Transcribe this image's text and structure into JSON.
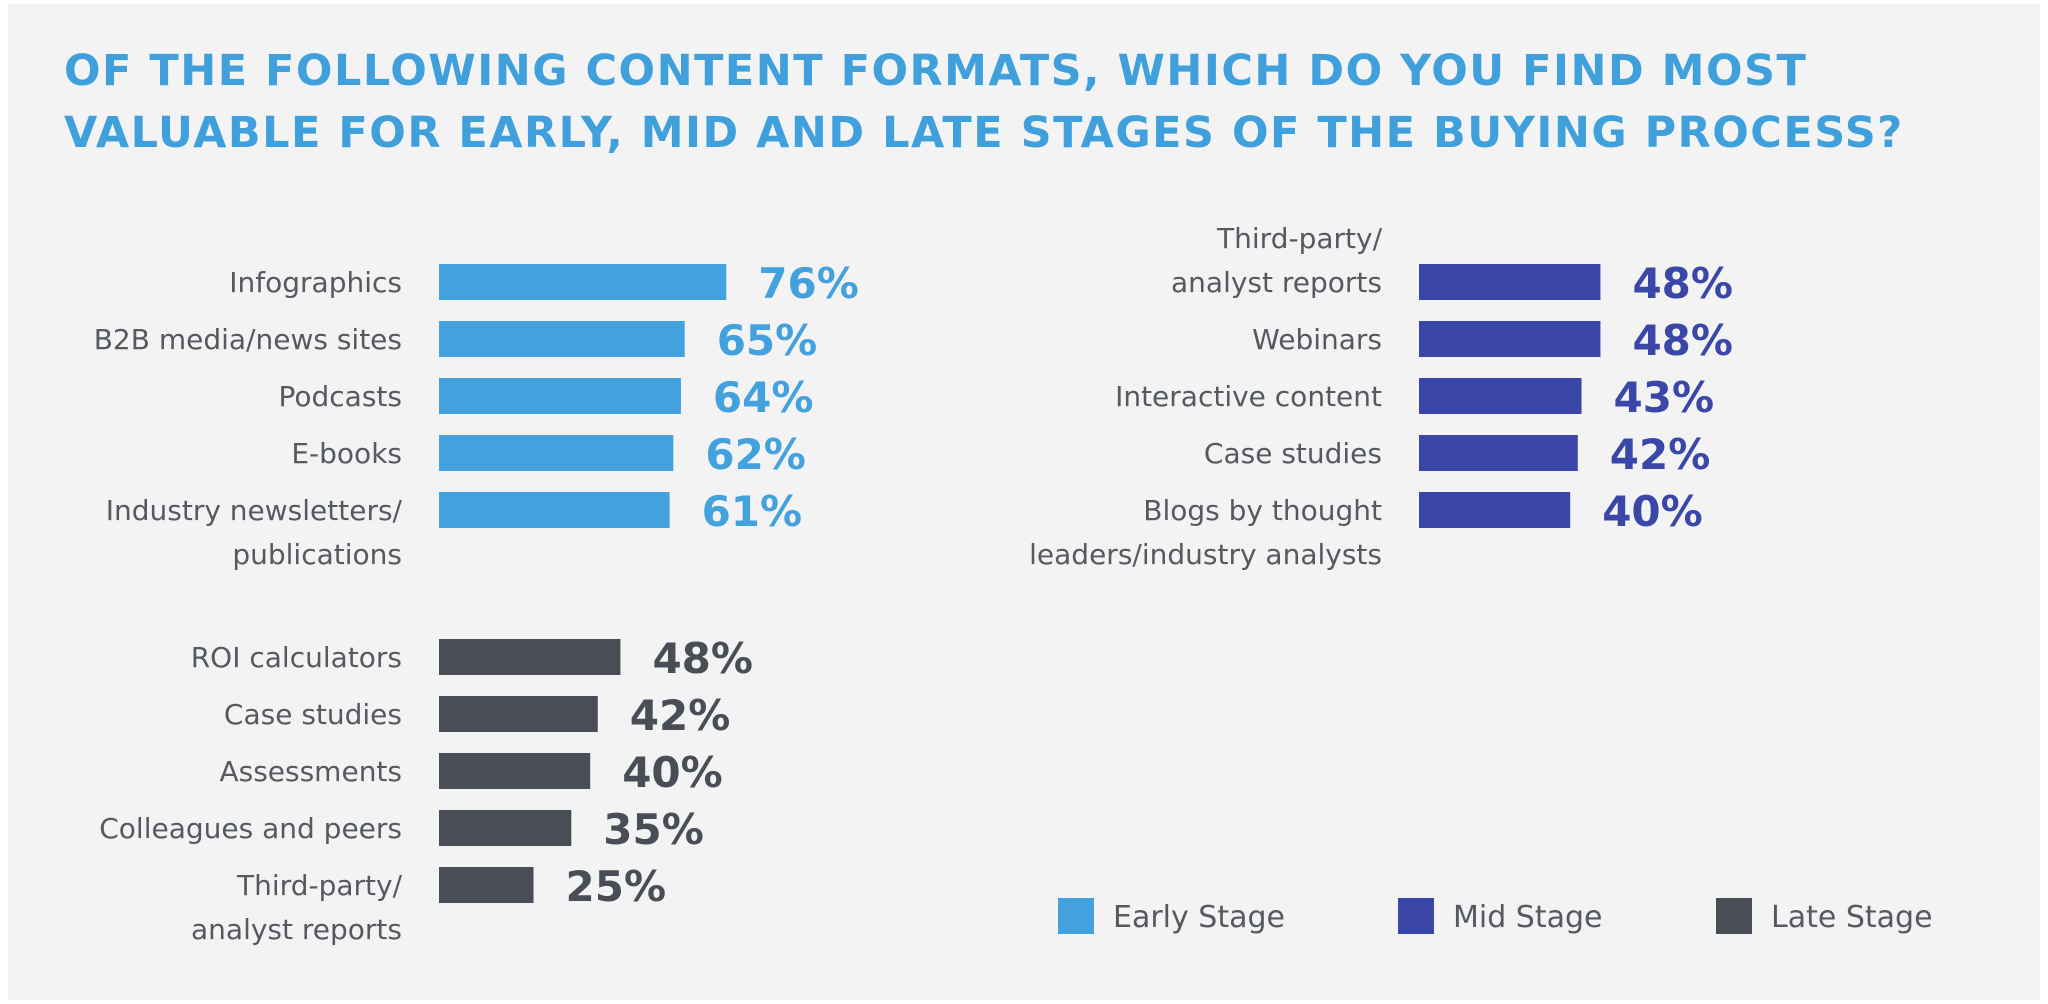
{
  "colors": {
    "title": "#3fa0dc",
    "early": "#43a1de",
    "mid": "#3b47a8",
    "late": "#494d55",
    "text": "#555a60",
    "background": "#f3f3f4"
  },
  "chart_data": {
    "type": "bar",
    "orientation": "horizontal",
    "title_lines": [
      "OF THE FOLLOWING CONTENT FORMATS, WHICH DO YOU FIND MOST",
      "VALUABLE FOR EARLY, MID AND LATE STAGES OF THE BUYING PROCESS?"
    ],
    "value_suffix": "%",
    "xlim": [
      0,
      100
    ],
    "grid": false,
    "legend_position": "bottom-right",
    "legend": [
      {
        "label": "Early Stage",
        "color_key": "early"
      },
      {
        "label": "Mid Stage",
        "color_key": "mid"
      },
      {
        "label": "Late Stage",
        "color_key": "late"
      }
    ],
    "groups": [
      {
        "stage": "Early Stage",
        "color_key": "early",
        "categories": [
          [
            "Infographics"
          ],
          [
            "B2B media/news sites"
          ],
          [
            "Podcasts"
          ],
          [
            "E-books"
          ],
          [
            "Industry newsletters/",
            "publications"
          ]
        ],
        "values": [
          76,
          65,
          64,
          62,
          61
        ]
      },
      {
        "stage": "Mid Stage",
        "color_key": "mid",
        "categories": [
          [
            "Third-party/",
            "analyst reports"
          ],
          [
            "Webinars"
          ],
          [
            "Interactive content"
          ],
          [
            "Case studies"
          ],
          [
            "Blogs by thought",
            "leaders/industry analysts"
          ]
        ],
        "values": [
          48,
          48,
          43,
          42,
          40
        ]
      },
      {
        "stage": "Late Stage",
        "color_key": "late",
        "categories": [
          [
            "ROI calculators"
          ],
          [
            "Case studies"
          ],
          [
            "Assessments"
          ],
          [
            "Colleagues and peers"
          ],
          [
            "Third-party/",
            "analyst reports"
          ]
        ],
        "values": [
          48,
          42,
          40,
          35,
          25
        ]
      }
    ]
  }
}
